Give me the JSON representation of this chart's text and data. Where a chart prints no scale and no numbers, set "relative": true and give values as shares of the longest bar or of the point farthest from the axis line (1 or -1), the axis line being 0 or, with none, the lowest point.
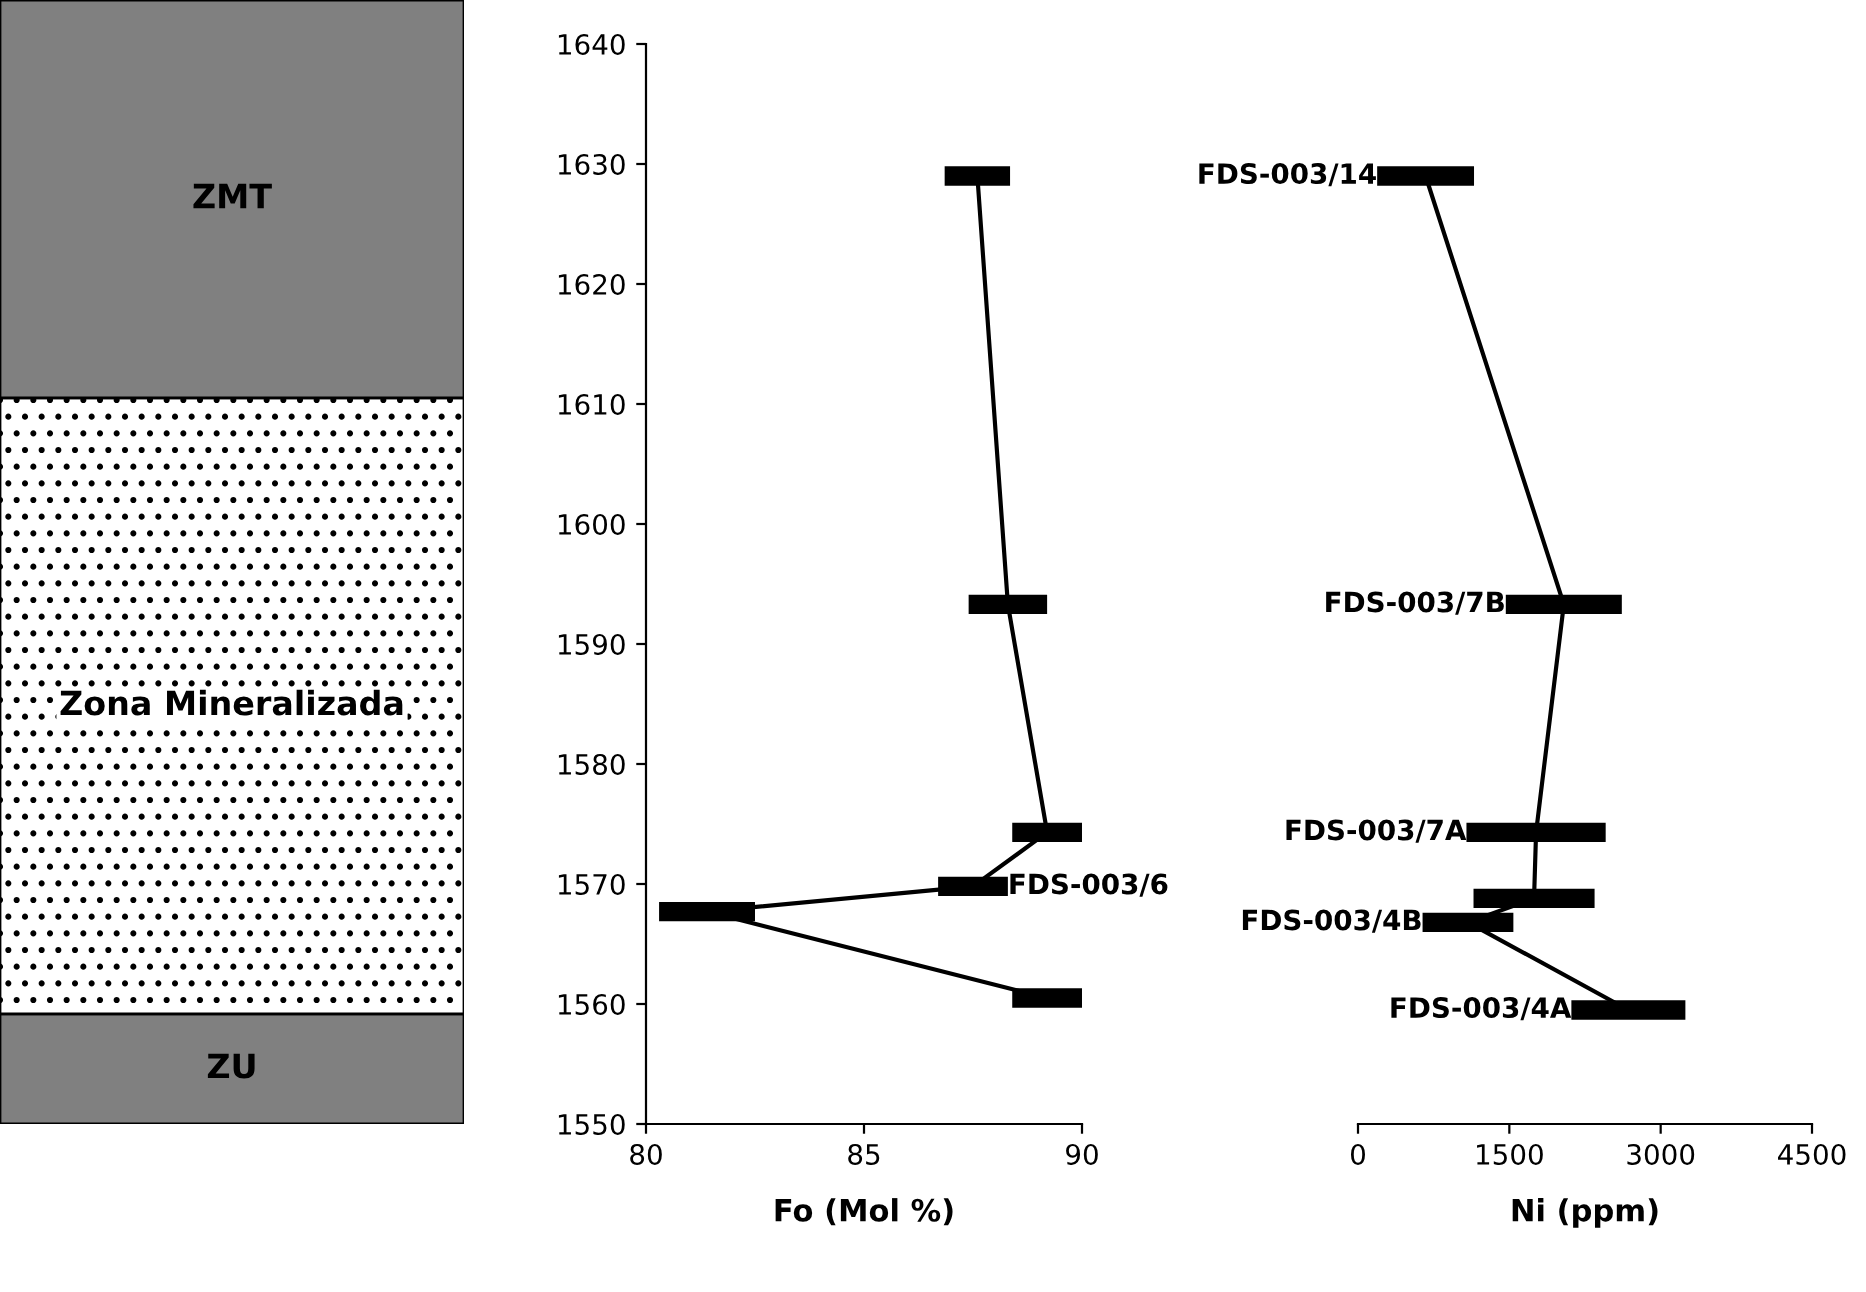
{
  "chart_data": [
    {
      "type": "bar",
      "stacked": true,
      "relative": true,
      "categories": [
        null
      ],
      "series": [
        {
          "name": "ZU",
          "color": "#808080",
          "values": [
            0.098
          ]
        },
        {
          "name": "Zona Mineralizada",
          "color": "#ffffff",
          "values": [
            0.548
          ]
        },
        {
          "name": "ZMT",
          "color": "#808080",
          "values": [
            0.354
          ]
        }
      ]
    },
    {
      "type": "line",
      "xlabel": "Fo (Mol %)",
      "xlim": [
        80,
        90
      ],
      "xticks": [
        80,
        85,
        90
      ],
      "ylim": [
        1550,
        1640
      ],
      "yticks": [
        1550,
        1560,
        1570,
        1580,
        1590,
        1600,
        1610,
        1620,
        1630,
        1640
      ],
      "series": [
        {
          "color": "#000000",
          "x": [
            87.6,
            88.3,
            89.2,
            87.5,
            81.4,
            89.2
          ],
          "values": [
            1629,
            1593.3,
            1574.3,
            1569.8,
            1567.7,
            1560.5
          ],
          "xerrors": [
            0.75,
            0.9,
            0.8,
            0.8,
            1.1,
            0.8
          ]
        }
      ],
      "annotations": [
        {
          "text": "FDS-003/6",
          "x": 88.3,
          "y": 1569.8
        }
      ]
    },
    {
      "type": "line",
      "xlabel": "Ni (ppm)",
      "xlim": [
        0,
        4500
      ],
      "xticks": [
        0,
        1500,
        3000,
        4500
      ],
      "ylim": [
        1550,
        1640
      ],
      "tick_labels": "x",
      "series": [
        {
          "color": "#000000",
          "x": [
            670,
            2040,
            1765,
            1745,
            1090,
            2680
          ],
          "values": [
            1629,
            1593.3,
            1574.3,
            1568.8,
            1566.8,
            1559.5
          ],
          "xerrors": [
            480,
            575,
            690,
            600,
            450,
            565
          ]
        }
      ],
      "annotations": [
        {
          "text": "FDS-003/14",
          "x": 190,
          "y": 1629
        },
        {
          "text": "FDS-003/7B",
          "x": 1465,
          "y": 1593.3
        },
        {
          "text": "FDS-003/7A",
          "x": 1075,
          "y": 1574.3
        },
        {
          "text": "FDS-003/4B",
          "x": 640,
          "y": 1566.8
        },
        {
          "text": "FDS-003/4A",
          "x": 2115,
          "y": 1559.5
        }
      ]
    }
  ]
}
